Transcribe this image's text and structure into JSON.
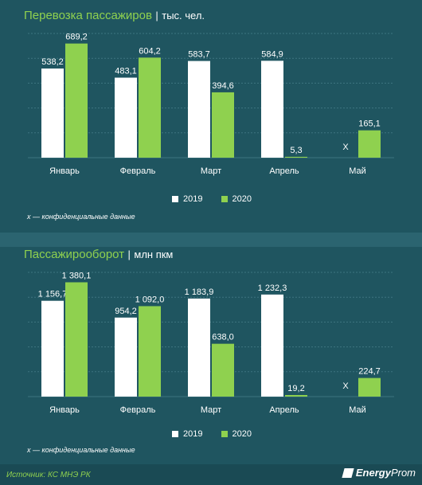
{
  "colors": {
    "background": "#1f5560",
    "accent_green": "#8fd14f",
    "bar_2019": "#ffffff",
    "bar_2020": "#8fd14f",
    "gridline": "#3e7580"
  },
  "charts": [
    {
      "title": "Перевозка пассажиров",
      "separator": "|",
      "unit": "тыс. чел.",
      "note": "x — конфиденциальные данные"
    },
    {
      "title": "Пассажирооборот",
      "separator": "|",
      "unit": "млн пкм",
      "note": "x — конфиденциальные данные"
    }
  ],
  "chart_data": [
    {
      "type": "bar",
      "title": "Перевозка пассажиров",
      "unit": "тыс. чел.",
      "categories": [
        "Январь",
        "Февраль",
        "Март",
        "Апрель",
        "Май"
      ],
      "series": [
        {
          "name": "2019",
          "values": [
            538.2,
            483.1,
            583.7,
            584.9,
            null
          ],
          "labels": [
            "538,2",
            "483,1",
            "583,7",
            "584,9",
            "X"
          ]
        },
        {
          "name": "2020",
          "values": [
            689.2,
            604.2,
            394.6,
            5.3,
            165.1
          ],
          "labels": [
            "689,2",
            "604,2",
            "394,6",
            "5,3",
            "165,1"
          ]
        }
      ],
      "ylim": [
        0,
        750
      ],
      "grid": true,
      "legend": "bottom-center"
    },
    {
      "type": "bar",
      "title": "Пассажирооборот",
      "unit": "млн пкм",
      "categories": [
        "Январь",
        "Февраль",
        "Март",
        "Апрель",
        "Май"
      ],
      "series": [
        {
          "name": "2019",
          "values": [
            1156.7,
            954.2,
            1183.9,
            1232.3,
            null
          ],
          "labels": [
            "1 156,7",
            "954,2",
            "1 183,9",
            "1 232,3",
            "X"
          ]
        },
        {
          "name": "2020",
          "values": [
            1380.1,
            1092.0,
            638.0,
            19.2,
            224.7
          ],
          "labels": [
            "1 380,1",
            "1 092,0",
            "638,0",
            "19,2",
            "224,7"
          ]
        }
      ],
      "ylim": [
        0,
        1500
      ],
      "grid": true,
      "legend": "bottom-center"
    }
  ],
  "footer": {
    "source": "Источник: КС МНЭ РК",
    "logo_energy": "Energy",
    "logo_prom": "Prom"
  }
}
